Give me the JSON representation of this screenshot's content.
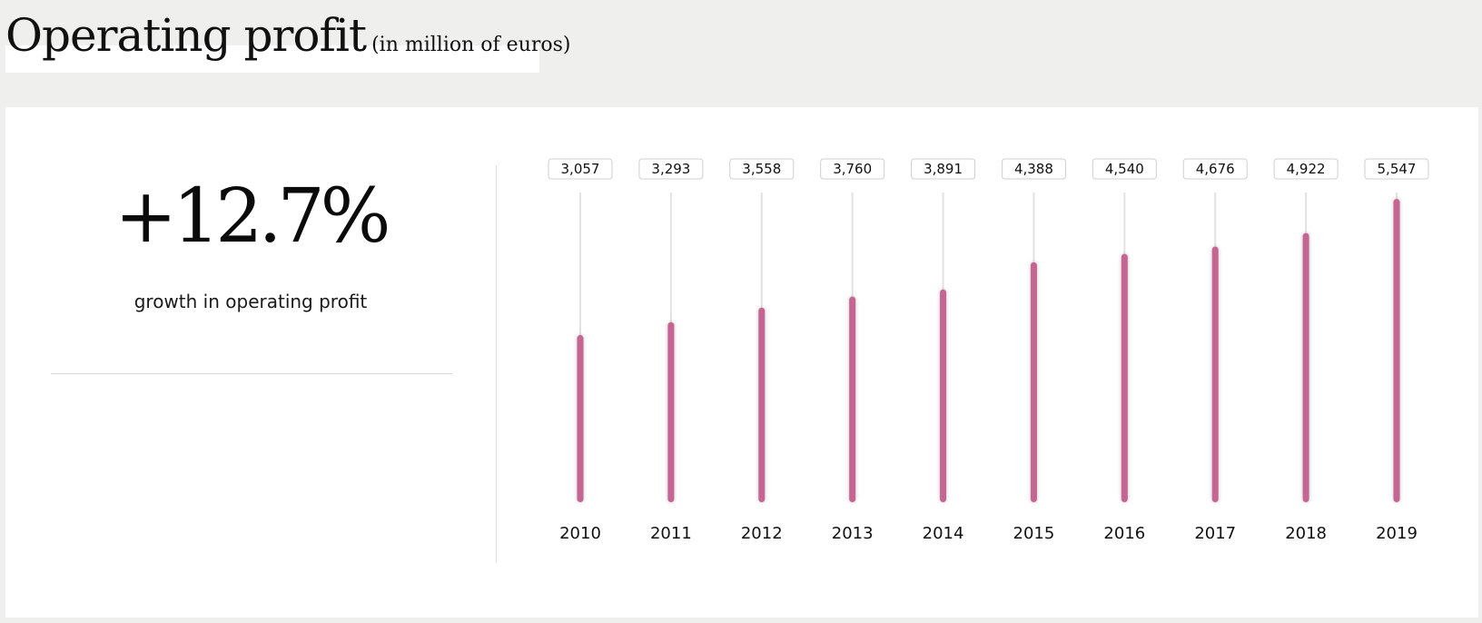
{
  "header": {
    "title": "Operating profit",
    "unit": "(in million of euros)"
  },
  "kpi": {
    "value": "+12.7%",
    "label": "growth in operating profit"
  },
  "colors": {
    "bar": "#c56592",
    "track": "#e2e2e2",
    "label_border": "#cfcfcf"
  },
  "chart_data": {
    "type": "bar",
    "categories": [
      "2010",
      "2011",
      "2012",
      "2013",
      "2014",
      "2015",
      "2016",
      "2017",
      "2018",
      "2019"
    ],
    "values": [
      3057,
      3293,
      3558,
      3760,
      3891,
      4388,
      4540,
      4676,
      4922,
      5547
    ],
    "value_labels": [
      "3,057",
      "3,293",
      "3,558",
      "3,760",
      "3,891",
      "4,388",
      "4,540",
      "4,676",
      "4,922",
      "5,547"
    ],
    "ylim": [
      0,
      5547
    ],
    "grid": false,
    "orientation": "vertical"
  }
}
